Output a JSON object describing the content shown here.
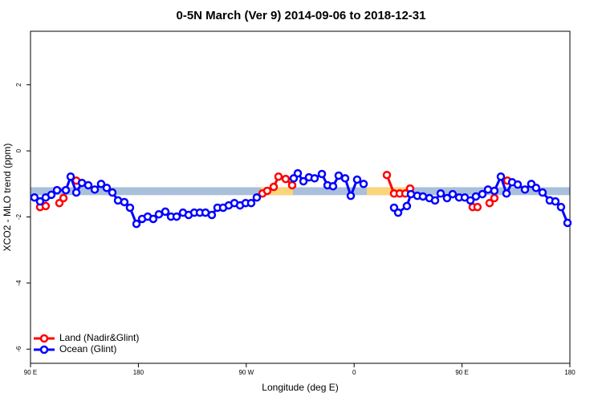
{
  "chart_data": {
    "type": "line",
    "title": "0-5N March (Ver 9)   2014-09-06 to 2018-12-31",
    "x_label": "Longitude (deg E)",
    "y_label": "XCO2 - MLO trend (ppm)",
    "xlim": [
      90,
      540
    ],
    "ylim": [
      -6.43,
      3.62
    ],
    "xticks": [
      {
        "value": 90,
        "label": "90 E"
      },
      180,
      {
        "value": 270,
        "label": "90 W"
      },
      {
        "value": 360,
        "label": "0"
      },
      {
        "value": 450,
        "label": "90 E"
      },
      {
        "value": 540,
        "label": "180"
      }
    ],
    "yticks": [
      2,
      0,
      -2,
      -4,
      -6
    ],
    "band": {
      "ylim": [
        -1.34,
        -1.1
      ],
      "color": "#a9bfdb"
    },
    "land_spans": {
      "ranges": [
        [
          282.2,
          309.0
        ],
        [
          370.6,
          407.4
        ]
      ],
      "color": "#fbd57a"
    },
    "legend": "bottom-left",
    "series": [
      {
        "name": "Land (Nadir&Glint)",
        "color": "#ff0000",
        "x": [
          98.0,
          102.7,
          null,
          114.1,
          117.5,
          null,
          128.2,
          null,
          283.5,
          287.5,
          292.9,
          296.9,
          302.9,
          308.3,
          null,
          387.3,
          393.3,
          398.0,
          402.7,
          406.7,
          null,
          458.9,
          462.9,
          null,
          473.0,
          477.0,
          null,
          487.8
        ],
        "values": [
          -1.7,
          -1.67,
          null,
          -1.58,
          -1.43,
          null,
          -0.9,
          null,
          -1.29,
          -1.21,
          -1.09,
          -0.78,
          -0.85,
          -1.04,
          null,
          -0.73,
          -1.29,
          -1.29,
          -1.29,
          -1.14,
          null,
          -1.7,
          -1.7,
          null,
          -1.58,
          -1.43,
          null,
          -0.9
        ]
      },
      {
        "name": "Ocean (Glint)",
        "color": "#0000ff",
        "x": [
          93.3,
          98.0,
          102.7,
          107.4,
          112.1,
          119.5,
          123.5,
          128.2,
          132.9,
          138.2,
          143.6,
          148.9,
          153.6,
          158.3,
          163.0,
          168.3,
          173.0,
          178.4,
          183.1,
          187.8,
          192.4,
          197.1,
          202.5,
          207.2,
          211.9,
          217.2,
          221.9,
          226.6,
          231.3,
          236.0,
          241.3,
          246.0,
          250.7,
          255.4,
          260.1,
          264.8,
          269.5,
          274.1,
          278.8,
          null,
          309.6,
          313.0,
          317.7,
          322.3,
          327.0,
          333.1,
          337.8,
          342.4,
          347.1,
          352.5,
          357.2,
          362.5,
          367.9,
          null,
          393.3,
          396.7,
          404.0,
          407.4,
          412.7,
          417.4,
          422.8,
          427.5,
          432.2,
          437.5,
          442.2,
          447.6,
          452.3,
          457.0,
          461.6,
          467.0,
          471.7,
          477.0,
          482.4,
          487.1,
          491.8,
          496.5,
          502.5,
          507.8,
          511.8,
          517.2,
          523.2,
          527.9,
          532.6,
          538.0
        ],
        "values": [
          -1.41,
          -1.53,
          -1.41,
          -1.33,
          -1.19,
          -1.19,
          -0.78,
          -1.26,
          -0.97,
          -1.04,
          -1.17,
          -1.0,
          -1.12,
          -1.26,
          -1.5,
          -1.55,
          -1.72,
          -2.21,
          -2.06,
          -1.99,
          -2.06,
          -1.92,
          -1.84,
          -1.99,
          -1.99,
          -1.87,
          -1.94,
          -1.87,
          -1.87,
          -1.87,
          -1.94,
          -1.72,
          -1.72,
          -1.65,
          -1.58,
          -1.65,
          -1.58,
          -1.58,
          -1.41,
          null,
          -0.83,
          -0.68,
          -0.92,
          -0.8,
          -0.83,
          -0.7,
          -1.04,
          -1.07,
          -0.75,
          -0.83,
          -1.36,
          -0.87,
          -1.0,
          null,
          -1.72,
          -1.87,
          -1.67,
          -1.31,
          -1.36,
          -1.38,
          -1.43,
          -1.5,
          -1.29,
          -1.43,
          -1.31,
          -1.41,
          -1.41,
          -1.5,
          -1.38,
          -1.31,
          -1.17,
          -1.21,
          -0.78,
          -1.29,
          -0.95,
          -1.02,
          -1.17,
          -1.0,
          -1.12,
          -1.26,
          -1.5,
          -1.53,
          -1.7,
          -2.18
        ]
      }
    ]
  }
}
